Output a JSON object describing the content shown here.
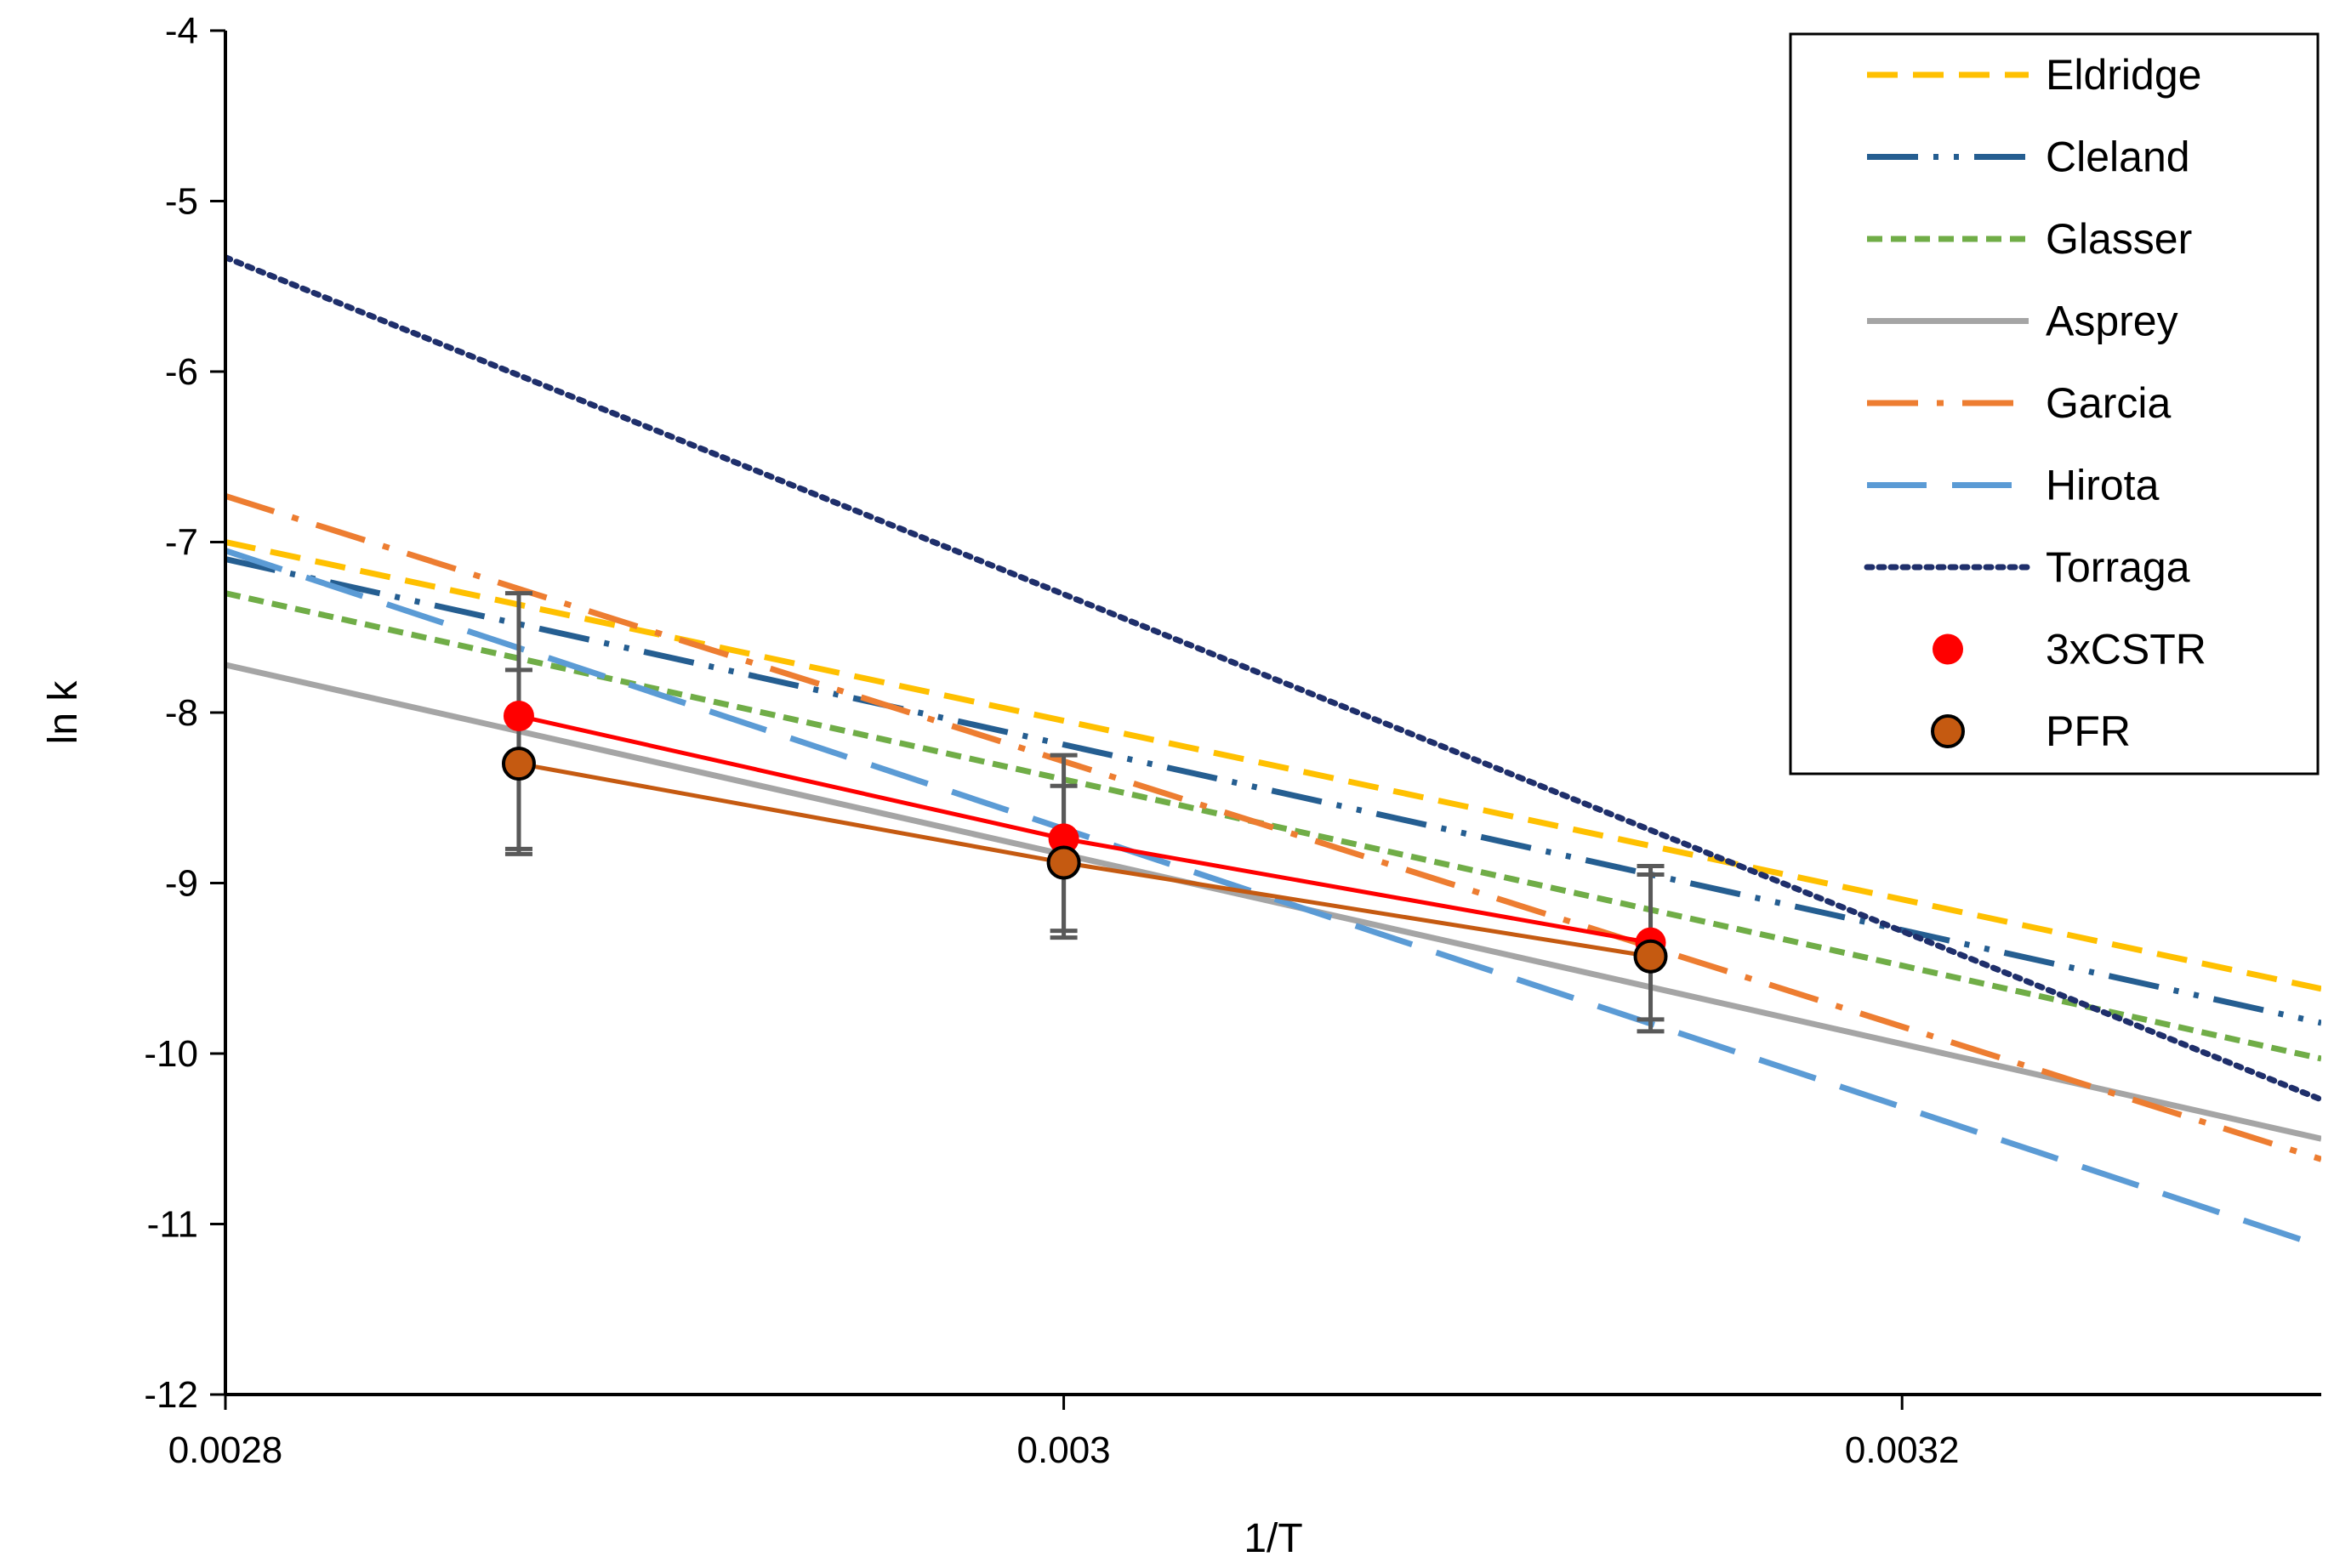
{
  "chart_data": {
    "type": "line",
    "title": "",
    "xlabel": "1/T",
    "ylabel": "ln k",
    "xlim": [
      0.0028,
      0.0033
    ],
    "ylim": [
      -12,
      -4
    ],
    "x_ticks": [
      0.0028,
      0.003,
      0.0032
    ],
    "x_tick_labels": [
      "0.0028",
      "0.003",
      "0.0032"
    ],
    "y_ticks": [
      -4,
      -5,
      -6,
      -7,
      -8,
      -9,
      -10,
      -11,
      -12
    ],
    "y_tick_labels": [
      "-4",
      "-5",
      "-6",
      "-7",
      "-8",
      "-9",
      "-10",
      "-11",
      "-12"
    ],
    "grid": false,
    "legend_position": "top-right",
    "series": [
      {
        "name": "Eldridge",
        "kind": "line",
        "color": "#FFC000",
        "dash": "dash",
        "x": [
          0.0028,
          0.0033
        ],
        "y": [
          -7.0,
          -9.62
        ]
      },
      {
        "name": "Cleland",
        "kind": "line",
        "color": "#255E91",
        "dash": "longdash-dot-dot",
        "x": [
          0.0028,
          0.0033
        ],
        "y": [
          -7.1,
          -9.82
        ]
      },
      {
        "name": "Glasser",
        "kind": "line",
        "color": "#70AD47",
        "dash": "short-dash",
        "x": [
          0.0028,
          0.0033
        ],
        "y": [
          -7.3,
          -10.03
        ]
      },
      {
        "name": "Asprey",
        "kind": "line",
        "color": "#A5A5A5",
        "dash": "solid",
        "x": [
          0.0028,
          0.0033
        ],
        "y": [
          -7.72,
          -10.5
        ]
      },
      {
        "name": "Garcia",
        "kind": "line",
        "color": "#ED7D31",
        "dash": "longdash-dot",
        "x": [
          0.0028,
          0.0033
        ],
        "y": [
          -6.73,
          -10.62
        ]
      },
      {
        "name": "Hirota",
        "kind": "line",
        "color": "#5B9BD5",
        "dash": "long-dash",
        "x": [
          0.0028,
          0.0033
        ],
        "y": [
          -7.05,
          -11.13
        ]
      },
      {
        "name": "Torraga",
        "kind": "line",
        "color": "#1F2F6B",
        "dash": "dot",
        "x": [
          0.0028,
          0.0033
        ],
        "y": [
          -5.33,
          -10.27
        ]
      },
      {
        "name": "3xCSTR",
        "kind": "markers",
        "color": "#FF0000",
        "x": [
          0.00287,
          0.003,
          0.00314
        ],
        "y": [
          -8.02,
          -8.74,
          -9.35
        ],
        "err_low": [
          -8.8,
          -9.28,
          -9.8
        ],
        "err_high": [
          -7.3,
          -8.25,
          -8.9
        ]
      },
      {
        "name": "PFR",
        "kind": "markers",
        "color": "#C55A11",
        "x": [
          0.00287,
          0.003,
          0.00314
        ],
        "y": [
          -8.3,
          -8.88,
          -9.43
        ],
        "err_low": [
          -8.83,
          -9.32,
          -9.87
        ],
        "err_high": [
          -7.75,
          -8.43,
          -8.95
        ]
      }
    ]
  }
}
